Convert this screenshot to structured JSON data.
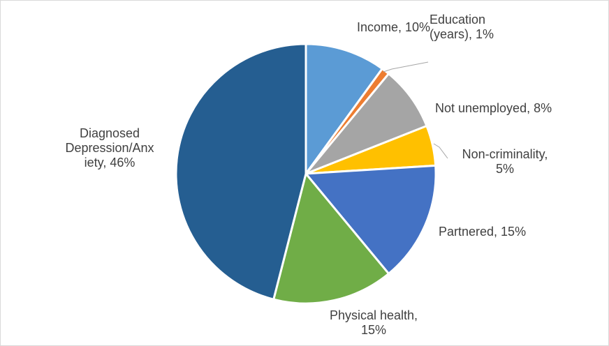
{
  "chart_data": {
    "type": "pie",
    "title": "",
    "legend": "none",
    "slices": [
      {
        "label_lines": [
          "Income, 10%"
        ],
        "value": 10,
        "color": "#5b9bd5"
      },
      {
        "label_lines": [
          "Education",
          "(years), 1%"
        ],
        "value": 1,
        "color": "#ed7d31"
      },
      {
        "label_lines": [
          "Not unemployed, 8%"
        ],
        "value": 8,
        "color": "#a5a5a5"
      },
      {
        "label_lines": [
          "Non-criminality,",
          "5%"
        ],
        "value": 5,
        "color": "#ffc000"
      },
      {
        "label_lines": [
          "Partnered, 15%"
        ],
        "value": 15,
        "color": "#4472c4"
      },
      {
        "label_lines": [
          "Physical health,",
          "15%"
        ],
        "value": 15,
        "color": "#70ad47"
      },
      {
        "label_lines": [
          "Diagnosed",
          "Depression/Anx",
          "iety, 46%"
        ],
        "value": 46,
        "color": "#255e91"
      }
    ]
  }
}
